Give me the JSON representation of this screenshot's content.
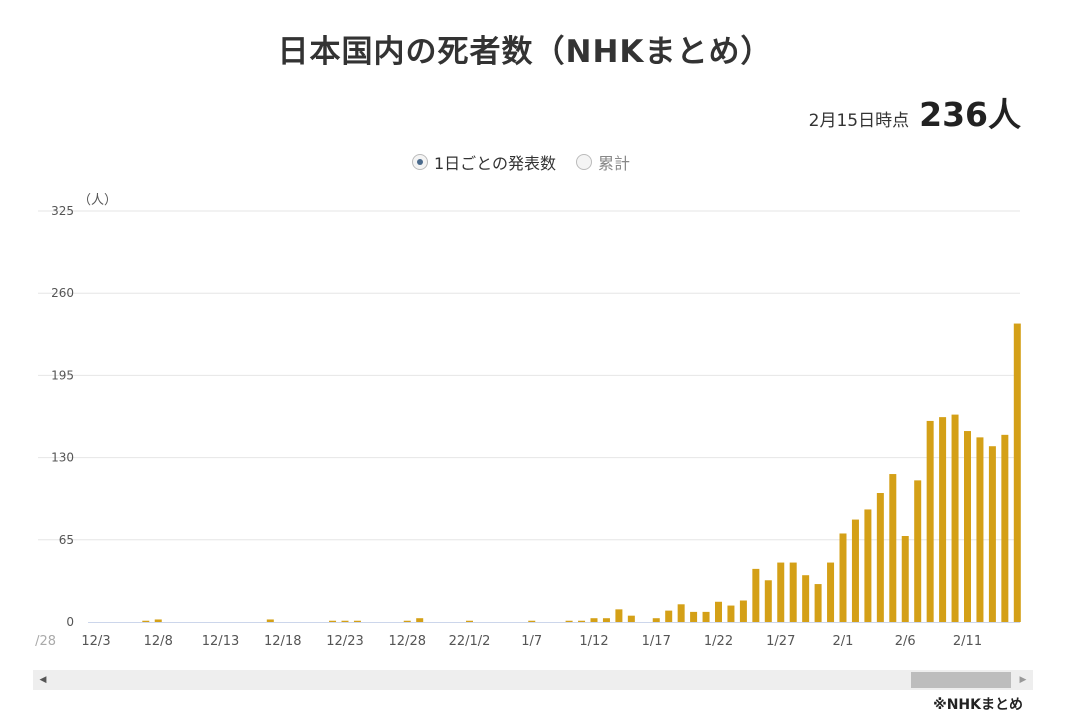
{
  "title": "日本国内の死者数（NHKまとめ）",
  "summary": {
    "as_of": "2月15日時点",
    "total": "236人"
  },
  "toggle": {
    "options": [
      "1日ごとの発表数",
      "累計"
    ],
    "selected": "1日ごとの発表数"
  },
  "source": "※NHKまとめ",
  "colors": {
    "bar": "#d4a017",
    "grid": "#e6e6e6",
    "axis": "#ccd6eb"
  },
  "chart_data": {
    "type": "bar",
    "ylabel": "（人）",
    "ylim": [
      0,
      325
    ],
    "yticks": [
      0,
      65,
      130,
      195,
      260,
      325
    ],
    "edge_label": "/28",
    "xtick_labels": [
      {
        "index": 0,
        "label": "12/3"
      },
      {
        "index": 5,
        "label": "12/8"
      },
      {
        "index": 10,
        "label": "12/13"
      },
      {
        "index": 15,
        "label": "12/18"
      },
      {
        "index": 20,
        "label": "12/23"
      },
      {
        "index": 25,
        "label": "12/28"
      },
      {
        "index": 30,
        "label": "22/1/2"
      },
      {
        "index": 35,
        "label": "1/7"
      },
      {
        "index": 40,
        "label": "1/12"
      },
      {
        "index": 45,
        "label": "1/17"
      },
      {
        "index": 50,
        "label": "1/22"
      },
      {
        "index": 55,
        "label": "1/27"
      },
      {
        "index": 60,
        "label": "2/1"
      },
      {
        "index": 65,
        "label": "2/6"
      },
      {
        "index": 70,
        "label": "2/11"
      }
    ],
    "values": [
      0,
      0,
      0,
      0,
      1,
      2,
      0,
      0,
      0,
      0,
      0,
      0,
      0,
      0,
      2,
      0,
      0,
      0,
      0,
      1,
      1,
      1,
      0,
      0,
      0,
      1,
      3,
      0,
      0,
      0,
      1,
      0,
      0,
      0,
      0,
      1,
      0,
      0,
      1,
      1,
      3,
      3,
      10,
      5,
      0,
      3,
      9,
      14,
      8,
      8,
      16,
      13,
      17,
      42,
      33,
      47,
      47,
      37,
      30,
      47,
      70,
      81,
      89,
      102,
      117,
      68,
      112,
      159,
      162,
      164,
      151,
      146,
      139,
      148,
      236
    ],
    "x_range": [
      "12/3",
      "2/15"
    ]
  }
}
